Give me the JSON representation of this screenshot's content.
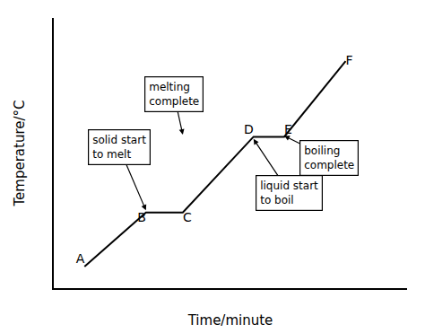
{
  "chart_data": {
    "type": "line",
    "x": [
      1,
      3,
      4.2,
      6.5,
      7.5,
      9.5
    ],
    "values": [
      1,
      3.5,
      3.5,
      7.0,
      7.0,
      10.5
    ],
    "labels": [
      "A",
      "B",
      "C",
      "D",
      "E",
      "F"
    ],
    "color": "#000000",
    "xlabel": "Time/minute",
    "ylabel": "Temperature/°C",
    "xlim": [
      0,
      11.5
    ],
    "ylim": [
      0,
      12.5
    ],
    "tick_labels": false,
    "grid": false,
    "annotations": [
      {
        "text": "solid start\nto melt",
        "x": 3.0,
        "y": 3.6
      },
      {
        "text": "melting\ncomplete",
        "x": 4.2,
        "y": 7.1
      },
      {
        "text": "liquid start\nto boil",
        "x": 6.5,
        "y": 6.9
      },
      {
        "text": "boiling\ncomplete",
        "x": 7.5,
        "y": 7.05
      }
    ]
  }
}
